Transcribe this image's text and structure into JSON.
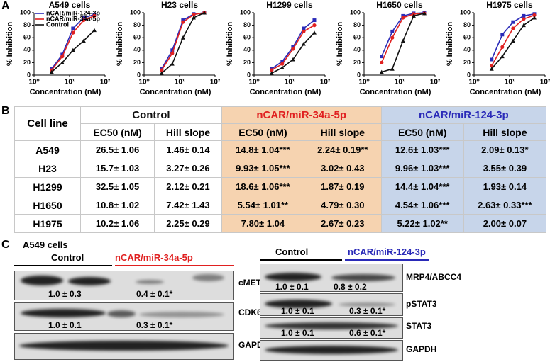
{
  "panels": [
    "A",
    "B",
    "C"
  ],
  "chart_data": [
    {
      "type": "line",
      "title": "A549 cells",
      "xlabel": "Concentration (nM)",
      "ylabel": "% Inhibition",
      "xscale": "log",
      "xlim": [
        1,
        100
      ],
      "xticks": [
        {
          "value": 1,
          "label": "10⁰"
        },
        {
          "value": 10,
          "label": "10¹"
        },
        {
          "value": 100,
          "label": "10²"
        }
      ],
      "ylim": [
        0,
        100
      ],
      "yticks": [
        0,
        20,
        40,
        60,
        80,
        100
      ],
      "legend": "upper left",
      "x": [
        3.125,
        6.25,
        12.5,
        25,
        50
      ],
      "series": [
        {
          "name": "nCAR/miR-124-3p",
          "color": "#2a2ab8",
          "marker": "square",
          "values": [
            10,
            33,
            75,
            92,
            97
          ]
        },
        {
          "name": "nCAR/miR-34a-5p",
          "color": "#e02020",
          "marker": "circle",
          "values": [
            8,
            30,
            68,
            88,
            95
          ]
        },
        {
          "name": "Control",
          "color": "#111111",
          "marker": "triangle",
          "values": [
            5,
            20,
            40,
            55,
            72
          ]
        }
      ]
    },
    {
      "type": "line",
      "title": "H23 cells",
      "xlabel": "Concentration (nM)",
      "ylabel": "% Inhibition",
      "xscale": "log",
      "xlim": [
        1,
        100
      ],
      "xticks": [
        {
          "value": 1,
          "label": "10⁰"
        },
        {
          "value": 10,
          "label": "10¹"
        },
        {
          "value": 100,
          "label": "10²"
        }
      ],
      "ylim": [
        0,
        100
      ],
      "yticks": [
        0,
        20,
        40,
        60,
        80,
        100
      ],
      "x": [
        3.125,
        6.25,
        12.5,
        25,
        50
      ],
      "series": [
        {
          "color": "#2a2ab8",
          "marker": "square",
          "values": [
            10,
            40,
            88,
            98,
            100
          ]
        },
        {
          "color": "#e02020",
          "marker": "circle",
          "values": [
            8,
            35,
            85,
            97,
            100
          ]
        },
        {
          "color": "#111111",
          "marker": "triangle",
          "values": [
            3,
            18,
            60,
            92,
            100
          ]
        }
      ]
    },
    {
      "type": "line",
      "title": "H1299 cells",
      "xlabel": "Concentration (nM)",
      "ylabel": "% Inhibition",
      "xscale": "log",
      "xlim": [
        1,
        100
      ],
      "xticks": [
        {
          "value": 1,
          "label": "10⁰"
        },
        {
          "value": 10,
          "label": "10¹"
        },
        {
          "value": 100,
          "label": "10²"
        }
      ],
      "ylim": [
        0,
        100
      ],
      "yticks": [
        0,
        20,
        40,
        60,
        80,
        100
      ],
      "x": [
        3.125,
        6.25,
        12.5,
        25,
        50
      ],
      "series": [
        {
          "color": "#2a2ab8",
          "marker": "square",
          "values": [
            10,
            22,
            45,
            75,
            88
          ]
        },
        {
          "color": "#e02020",
          "marker": "circle",
          "values": [
            8,
            18,
            42,
            70,
            80
          ]
        },
        {
          "color": "#111111",
          "marker": "triangle",
          "values": [
            3,
            12,
            25,
            50,
            68
          ]
        }
      ]
    },
    {
      "type": "line",
      "title": "H1650 cells",
      "xlabel": "Concentration (nM)",
      "ylabel": "% Inhibition",
      "xscale": "log",
      "xlim": [
        1,
        100
      ],
      "xticks": [
        {
          "value": 1,
          "label": "10⁰"
        },
        {
          "value": 10,
          "label": "10¹"
        },
        {
          "value": 100,
          "label": "10²"
        }
      ],
      "ylim": [
        0,
        100
      ],
      "yticks": [
        0,
        20,
        40,
        60,
        80,
        100
      ],
      "x": [
        3.125,
        6.25,
        12.5,
        25,
        50
      ],
      "series": [
        {
          "color": "#2a2ab8",
          "marker": "square",
          "values": [
            30,
            70,
            95,
            99,
            100
          ]
        },
        {
          "color": "#e02020",
          "marker": "circle",
          "values": [
            20,
            60,
            92,
            98,
            99
          ]
        },
        {
          "color": "#111111",
          "marker": "triangle",
          "values": [
            5,
            10,
            55,
            95,
            99
          ]
        }
      ]
    },
    {
      "type": "line",
      "title": "H1975 cells",
      "xlabel": "Concentration (nM)",
      "ylabel": "% Inhibition",
      "xscale": "log",
      "xlim": [
        1,
        100
      ],
      "xticks": [
        {
          "value": 1,
          "label": "10⁰"
        },
        {
          "value": 10,
          "label": "10¹"
        },
        {
          "value": 100,
          "label": "10²"
        }
      ],
      "ylim": [
        0,
        100
      ],
      "yticks": [
        0,
        20,
        40,
        60,
        80,
        100
      ],
      "x": [
        3.125,
        6.25,
        12.5,
        25,
        50
      ],
      "series": [
        {
          "color": "#2a2ab8",
          "marker": "square",
          "values": [
            25,
            65,
            85,
            95,
            98
          ]
        },
        {
          "color": "#e02020",
          "marker": "circle",
          "values": [
            15,
            45,
            75,
            90,
            96
          ]
        },
        {
          "color": "#111111",
          "marker": "triangle",
          "values": [
            10,
            30,
            55,
            80,
            92
          ]
        }
      ]
    }
  ],
  "table": {
    "header": [
      "Cell line",
      "Control",
      "nCAR/miR-34a-5p",
      "nCAR/miR-124-3p"
    ],
    "subheader": [
      "EC50 (nM)",
      "Hill slope",
      "EC50 (nM)",
      "Hill slope",
      "EC50 (nM)",
      "Hill slope"
    ],
    "rows": [
      [
        "A549",
        "26.5± 1.06",
        "1.46± 0.14",
        "14.8± 1.04***",
        "2.24± 0.19**",
        "12.6± 1.03***",
        "2.09± 0.13*"
      ],
      [
        "H23",
        "15.7± 1.03",
        "3.27± 0.26",
        "9.93± 1.05***",
        "3.02± 0.43",
        "9.96± 1.03***",
        "3.55± 0.39"
      ],
      [
        "H1299",
        "32.5± 1.05",
        "2.12± 0.21",
        "18.6± 1.06***",
        "1.87± 0.19",
        "14.4± 1.04***",
        "1.93± 0.14"
      ],
      [
        "H1650",
        "10.8± 1.02",
        "7.42± 1.43",
        "5.54± 1.01**",
        "4.79± 0.30",
        "4.54± 1.06***",
        "2.63± 0.33***"
      ],
      [
        "H1975",
        "10.2± 1.06",
        "2.25± 0.29",
        "7.80± 1.04",
        "2.67± 0.23",
        "5.22± 1.02**",
        "2.00± 0.07"
      ]
    ]
  },
  "blots": {
    "cell_line": "A549 cells",
    "left": {
      "groups": [
        "Control",
        "nCAR/miR-34a-5p"
      ],
      "rows": [
        {
          "label": "cMET",
          "quant": [
            "1.0 ± 0.3",
            "0.4 ± 0.1*"
          ]
        },
        {
          "label": "CDK6",
          "quant": [
            "1.0 ± 0.1",
            "0.3 ± 0.1*"
          ]
        },
        {
          "label": "GAPDH"
        }
      ]
    },
    "right": {
      "groups": [
        "Control",
        "nCAR/miR-124-3p"
      ],
      "rows": [
        {
          "label": "MRP4/ABCC4",
          "quant": [
            "1.0 ± 0.1",
            "0.8 ± 0.2"
          ]
        },
        {
          "label": "pSTAT3",
          "quant": [
            "1.0 ± 0.1",
            "0.3 ± 0.1*"
          ]
        },
        {
          "label": "STAT3",
          "quant": [
            "1.0 ± 0.1",
            "0.6 ± 0.1*"
          ]
        },
        {
          "label": "GAPDH"
        }
      ]
    }
  }
}
